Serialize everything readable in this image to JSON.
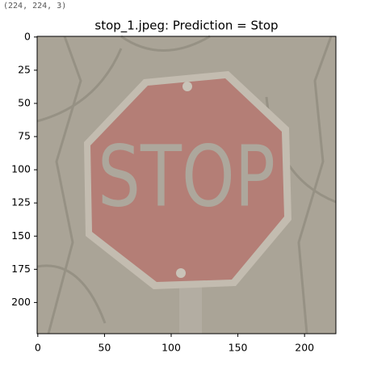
{
  "output_text": "(224, 224, 3)",
  "chart_data": {
    "type": "image",
    "title": "stop_1.jpeg: Prediction = Stop",
    "sign_text": "STOP",
    "xlim": [
      -0.5,
      223.5
    ],
    "ylim": [
      223.5,
      -0.5
    ],
    "xticks": [
      0,
      50,
      100,
      150,
      200
    ],
    "yticks": [
      0,
      25,
      50,
      75,
      100,
      125,
      150,
      175,
      200
    ]
  }
}
